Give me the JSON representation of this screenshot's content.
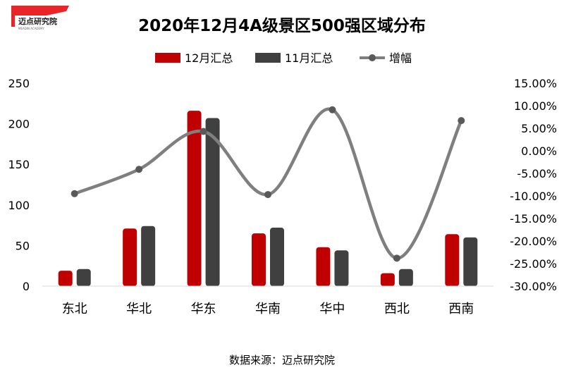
{
  "logo": {
    "name": "迈点研究院",
    "subtitle": "MEADIN ACADEMY"
  },
  "chart_data": {
    "type": "bar",
    "title": "2020年12月4A级景区500强区域分布",
    "source": "数据来源：迈点研究院",
    "categories": [
      "东北",
      "华北",
      "华东",
      "华南",
      "华中",
      "西北",
      "西南"
    ],
    "series": [
      {
        "name": "12月汇总",
        "kind": "bar",
        "color": "#c00000",
        "values": [
          19,
          71,
          216,
          65,
          48,
          16,
          64
        ]
      },
      {
        "name": "11月汇总",
        "kind": "bar",
        "color": "#404040",
        "values": [
          21,
          74,
          207,
          72,
          44,
          21,
          60
        ]
      },
      {
        "name": "增幅",
        "kind": "line",
        "axis": "right",
        "color": "#7f7f7f",
        "values": [
          -9.5,
          -4.1,
          4.3,
          -9.7,
          9.1,
          -23.8,
          6.7
        ]
      }
    ],
    "y_left": {
      "min": 0,
      "max": 250,
      "ticks": [
        "0",
        "50",
        "100",
        "150",
        "200",
        "250"
      ]
    },
    "y_right": {
      "min": -30,
      "max": 15,
      "ticks": [
        "-30.00%",
        "-25.00%",
        "-20.00%",
        "-15.00%",
        "-10.00%",
        "-5.00%",
        "0.00%",
        "5.00%",
        "10.00%",
        "15.00%"
      ]
    },
    "legend_position": "top-center",
    "grid": false
  }
}
